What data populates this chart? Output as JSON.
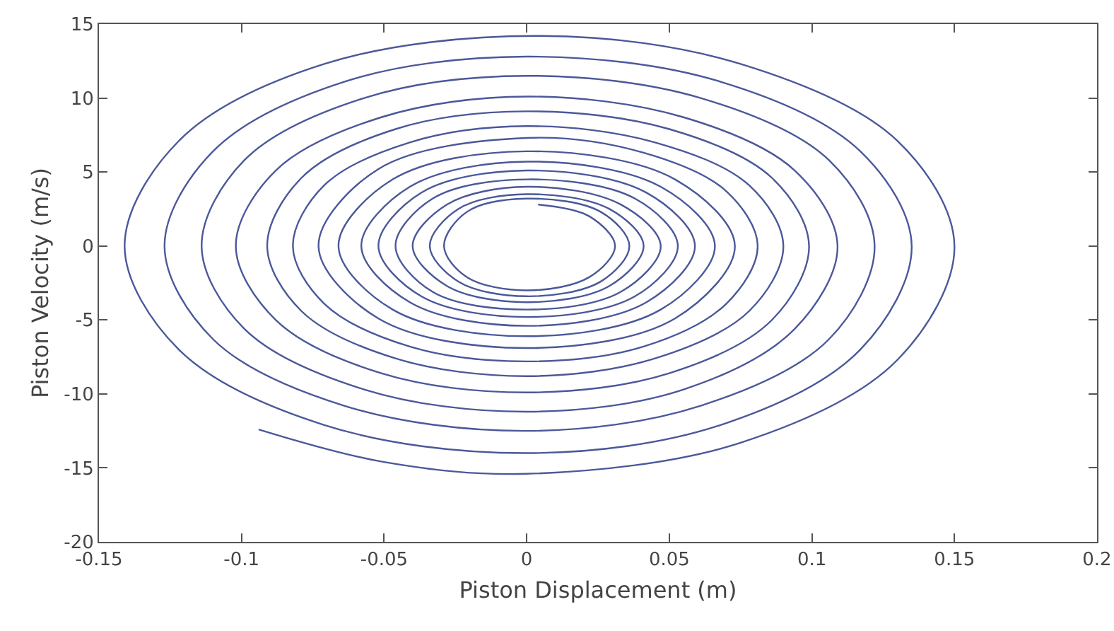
{
  "chart_data": {
    "type": "line",
    "xlabel": "Piston Displacement (m)",
    "ylabel": "Piston Velocity (m/s)",
    "color": "#4b5899",
    "line_style": "solid",
    "xlim": [
      -0.15,
      0.2
    ],
    "ylim": [
      -20,
      15
    ],
    "xticks": [
      -0.15,
      -0.1,
      -0.05,
      0,
      0.05,
      0.1,
      0.15,
      0.2
    ],
    "yticks": [
      -20,
      -15,
      -10,
      -5,
      0,
      5,
      10,
      15
    ],
    "x": [
      0.004,
      0.022,
      0.031,
      0.022,
      0.0,
      -0.021,
      -0.029,
      -0.021,
      0.0,
      0.026,
      0.036,
      0.026,
      0.0,
      -0.024,
      -0.034,
      -0.024,
      0.0,
      0.029,
      0.041,
      0.029,
      0.0,
      -0.028,
      -0.04,
      -0.028,
      0.0,
      0.033,
      0.047,
      0.033,
      0.0,
      -0.033,
      -0.046,
      -0.033,
      0.0,
      0.038,
      0.053,
      0.038,
      0.0,
      -0.037,
      -0.052,
      -0.037,
      0.0,
      0.042,
      0.059,
      0.042,
      0.0,
      -0.041,
      -0.058,
      -0.041,
      0.0,
      0.047,
      0.066,
      0.047,
      0.0,
      -0.047,
      -0.066,
      -0.047,
      0.0,
      0.052,
      0.073,
      0.052,
      0.0,
      -0.052,
      -0.073,
      -0.052,
      0.0,
      0.041,
      0.07,
      0.081,
      0.07,
      0.041,
      0.0,
      -0.041,
      -0.071,
      -0.082,
      -0.071,
      -0.041,
      0.0,
      0.045,
      0.078,
      0.09,
      0.078,
      0.045,
      0.0,
      -0.046,
      -0.079,
      -0.091,
      -0.079,
      -0.046,
      0.0,
      0.05,
      0.086,
      0.099,
      0.086,
      0.05,
      0.0,
      -0.051,
      -0.088,
      -0.102,
      -0.088,
      -0.051,
      0.0,
      0.055,
      0.094,
      0.109,
      0.094,
      0.055,
      0.0,
      -0.057,
      -0.099,
      -0.114,
      -0.099,
      -0.057,
      0.0,
      0.061,
      0.106,
      0.122,
      0.106,
      0.061,
      0.0,
      -0.064,
      -0.11,
      -0.127,
      -0.11,
      -0.064,
      0.0,
      0.068,
      0.117,
      0.135,
      0.117,
      0.068,
      0.0,
      -0.071,
      -0.122,
      -0.141,
      -0.122,
      -0.071,
      0.005,
      0.075,
      0.13,
      0.15,
      0.13,
      0.075,
      0.0,
      -0.05,
      -0.094
    ],
    "values": [
      2.8,
      2.0,
      0.0,
      -2.1,
      -3.0,
      -2.1,
      0.0,
      2.3,
      3.2,
      2.3,
      0.0,
      -2.4,
      -3.4,
      -2.4,
      0.0,
      2.5,
      3.5,
      2.5,
      0.0,
      -2.7,
      -3.8,
      -2.7,
      0.0,
      2.8,
      4.0,
      2.8,
      0.0,
      -3.1,
      -4.3,
      -3.1,
      0.0,
      3.2,
      4.5,
      3.2,
      0.0,
      -3.4,
      -4.8,
      -3.4,
      0.0,
      3.6,
      5.1,
      3.6,
      0.0,
      -3.8,
      -5.4,
      -3.8,
      0.0,
      4.0,
      5.7,
      4.0,
      0.0,
      -4.3,
      -6.1,
      -4.3,
      0.0,
      4.5,
      6.4,
      4.5,
      0.0,
      -4.9,
      -6.9,
      -4.9,
      0.0,
      5.2,
      7.3,
      6.3,
      3.7,
      0.0,
      -3.9,
      -6.8,
      -7.8,
      -6.8,
      -3.9,
      0.0,
      4.1,
      7.0,
      8.1,
      7.0,
      4.1,
      0.0,
      -4.4,
      -7.6,
      -8.8,
      -7.6,
      -4.4,
      0.0,
      4.6,
      7.9,
      9.1,
      7.9,
      4.6,
      0.0,
      -5.0,
      -8.6,
      -9.9,
      -8.6,
      -5.0,
      0.0,
      5.1,
      8.7,
      10.1,
      8.7,
      5.1,
      0.0,
      -5.6,
      -9.7,
      -11.2,
      -9.7,
      -5.6,
      0.0,
      5.8,
      10.0,
      11.5,
      10.0,
      5.8,
      0.0,
      -6.3,
      -10.8,
      -12.5,
      -10.8,
      -6.3,
      0.0,
      6.4,
      11.1,
      12.8,
      11.1,
      6.4,
      0.0,
      -7.0,
      -12.1,
      -14.0,
      -12.1,
      -7.0,
      0.0,
      7.1,
      12.3,
      14.2,
      12.3,
      7.1,
      0.0,
      -7.7,
      -13.3,
      -15.4,
      -14.6,
      -12.4
    ]
  }
}
